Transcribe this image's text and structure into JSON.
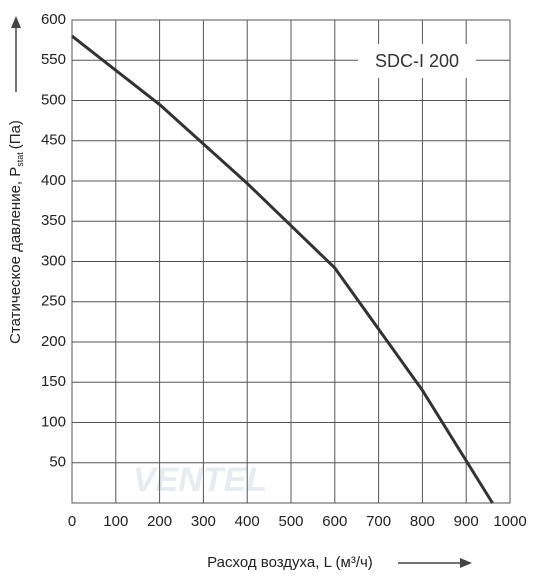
{
  "chart_data": {
    "type": "line",
    "annotation": "SDC-I 200",
    "watermark": "VENTEL",
    "xlabel": "Расход воздуха, L (м³/ч)",
    "ylabel": "Статическое давление, P",
    "ylabel_sub": "stat",
    "ylabel_unit": "(Па)",
    "x": [
      0,
      200,
      400,
      600,
      800,
      960
    ],
    "series": [
      {
        "color": "#333333",
        "values": [
          580,
          495,
          397,
          292,
          140,
          0
        ]
      }
    ],
    "xlim": [
      0,
      1000
    ],
    "xticks": [
      0,
      100,
      200,
      300,
      400,
      500,
      600,
      700,
      800,
      900,
      1000
    ],
    "ylim": [
      0,
      600
    ],
    "yticks": [
      50,
      100,
      150,
      200,
      250,
      300,
      350,
      400,
      450,
      500,
      550,
      600
    ],
    "grid": true
  }
}
